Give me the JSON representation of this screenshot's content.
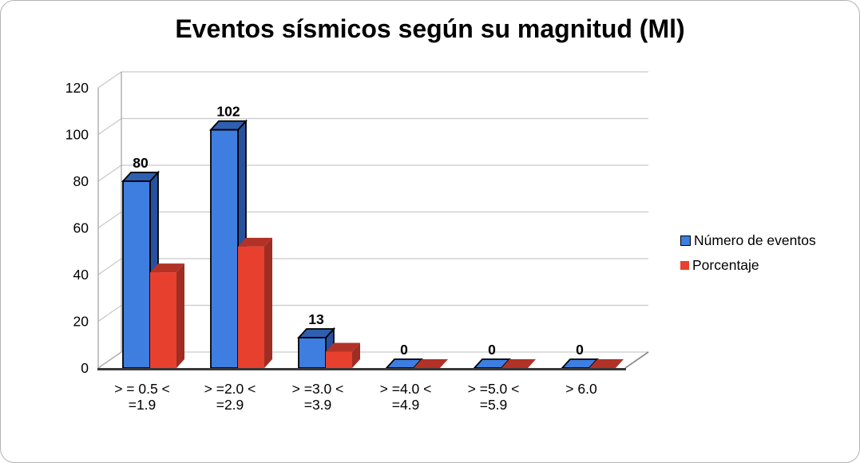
{
  "chart_data": {
    "type": "bar",
    "projection": "3d-clustered-column",
    "title": "Eventos sísmicos según su magnitud (Ml)",
    "categories": [
      [
        "> = 0.5 <",
        "=1.9"
      ],
      [
        "> =2.0 <",
        "=2.9"
      ],
      [
        "> =3.0 <",
        "=3.9"
      ],
      [
        "> =4.0 <",
        "=4.9"
      ],
      [
        "> =5.0 <",
        "=5.9"
      ],
      [
        "> 6.0"
      ]
    ],
    "series": [
      {
        "name": "Número de eventos",
        "values": [
          80,
          102,
          13,
          0,
          0,
          0
        ],
        "color": "#3D7EE0",
        "color_top": "#2E5FB0",
        "color_side": "#27519E",
        "outline": "#000000"
      },
      {
        "name": "Porcentaje",
        "values": [
          41,
          52,
          7,
          0,
          0,
          0
        ],
        "color": "#E8402F",
        "color_top": "#B23227",
        "color_side": "#9E2D24",
        "outline": null
      }
    ],
    "data_labels": [
      "80",
      "102",
      "13",
      "0",
      "0",
      "0"
    ],
    "xlabel": "",
    "ylabel": "",
    "ylim": [
      0,
      120
    ],
    "yticks": [
      0,
      20,
      40,
      60,
      80,
      100,
      120
    ],
    "grid": true,
    "legend_position": "right-middle",
    "colors": {
      "gridline": "#C9C9C9",
      "wall_edge": "#A6A6A6",
      "floor_right_edge": "#8F8F8F",
      "floor_front": "#383838",
      "background": "#FFFFFF",
      "card_border": "#B3B3B3",
      "text": "#000000"
    }
  }
}
